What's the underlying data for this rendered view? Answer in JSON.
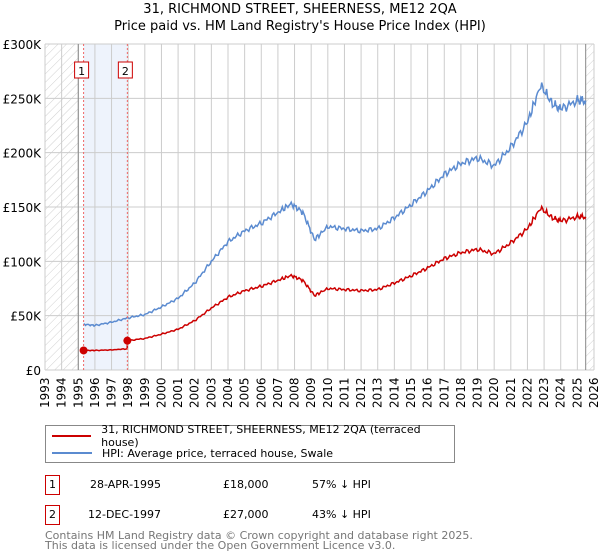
{
  "title": "31, RICHMOND STREET, SHEERNESS, ME12 2QA",
  "subtitle": "Price paid vs. HM Land Registry's House Price Index (HPI)",
  "chart_data": {
    "type": "line",
    "title": "31, RICHMOND STREET, SHEERNESS, ME12 2QA",
    "subtitle": "Price paid vs. HM Land Registry's House Price Index (HPI)",
    "xlim": [
      1993,
      2026
    ],
    "ylim": [
      0,
      300000
    ],
    "x_ticks": [
      "1993",
      "1994",
      "1995",
      "1996",
      "1997",
      "1998",
      "1999",
      "2000",
      "2001",
      "2002",
      "2003",
      "2004",
      "2005",
      "2006",
      "2007",
      "2008",
      "2009",
      "2010",
      "2011",
      "2012",
      "2013",
      "2014",
      "2015",
      "2016",
      "2017",
      "2018",
      "2019",
      "2020",
      "2021",
      "2022",
      "2023",
      "2024",
      "2025",
      "2026"
    ],
    "y_ticks": [
      {
        "v": 0,
        "label": "£0"
      },
      {
        "v": 50000,
        "label": "£50K"
      },
      {
        "v": 100000,
        "label": "£100K"
      },
      {
        "v": 150000,
        "label": "£150K"
      },
      {
        "v": 200000,
        "label": "£200K"
      },
      {
        "v": 250000,
        "label": "£250K"
      },
      {
        "v": 300000,
        "label": "£300K"
      }
    ],
    "grid": true,
    "hatched_before": 1995.0,
    "hatched_after": 2025.5,
    "series": [
      {
        "name": "31, RICHMOND STREET, SHEERNESS, ME12 2QA (terraced house)",
        "color": "#cc0000",
        "x": [
          1995.32,
          1996,
          1997,
          1997.94,
          1997.95,
          1999,
          2000,
          2001,
          2002,
          2003,
          2004,
          2005,
          2006,
          2007,
          2007.8,
          2008.5,
          2009.2,
          2010,
          2011,
          2012,
          2013,
          2014,
          2015,
          2016,
          2017,
          2018,
          2019,
          2020,
          2021,
          2022,
          2022.8,
          2023.5,
          2024,
          2025,
          2025.5
        ],
        "y": [
          18000,
          18000,
          18500,
          19500,
          27000,
          29000,
          33000,
          37500,
          45500,
          57000,
          67000,
          73000,
          77000,
          82500,
          87000,
          82500,
          68500,
          75000,
          74000,
          73000,
          74000,
          80000,
          86500,
          94000,
          102500,
          108000,
          111000,
          107000,
          117000,
          130000,
          149000,
          140000,
          137000,
          141000,
          141000
        ]
      },
      {
        "name": "HPI: Average price, terraced house, Swale",
        "color": "#5b8bd0",
        "x": [
          1995.32,
          1996,
          1997,
          1998,
          1999,
          2000,
          2001,
          2002,
          2003,
          2004,
          2005,
          2006,
          2007,
          2007.8,
          2008.5,
          2009.2,
          2010,
          2011,
          2012,
          2013,
          2014,
          2015,
          2016,
          2017,
          2018,
          2019,
          2020,
          2021,
          2022,
          2022.8,
          2023.5,
          2024,
          2025,
          2025.5
        ],
        "y": [
          42000,
          41000,
          44000,
          48000,
          51000,
          58000,
          66000,
          80000,
          100000,
          118000,
          128000,
          135000,
          145000,
          153000,
          145000,
          120000,
          132000,
          130000,
          128000,
          130000,
          140000,
          152000,
          165000,
          180000,
          190000,
          195000,
          188000,
          205000,
          228000,
          262000,
          245000,
          240000,
          248000,
          248000
        ]
      }
    ],
    "annotations": [
      {
        "label": "1",
        "x": 1995.32,
        "y": 18000
      },
      {
        "label": "2",
        "x": 1997.95,
        "y": 27000
      }
    ]
  },
  "legend": {
    "items": [
      {
        "label": "31, RICHMOND STREET, SHEERNESS, ME12 2QA (terraced house)",
        "color": "#cc0000"
      },
      {
        "label": "HPI: Average price, terraced house, Swale",
        "color": "#5b8bd0"
      }
    ]
  },
  "sales": [
    {
      "num": "1",
      "date": "28-APR-1995",
      "price": "£18,000",
      "hpi": "57% ↓ HPI"
    },
    {
      "num": "2",
      "date": "12-DEC-1997",
      "price": "£27,000",
      "hpi": "43% ↓ HPI"
    }
  ],
  "footer": {
    "line1": "Contains HM Land Registry data © Crown copyright and database right 2025.",
    "line2": "This data is licensed under the Open Government Licence v3.0."
  }
}
